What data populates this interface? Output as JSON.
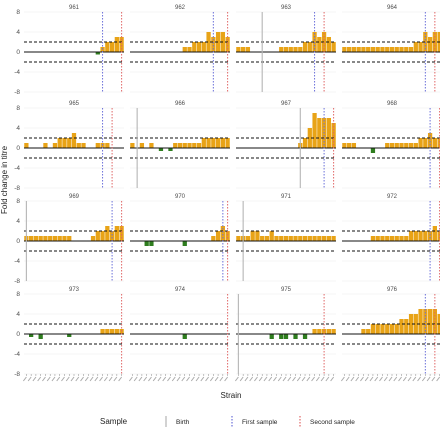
{
  "chart_data": {
    "type": "bar",
    "ylabel": "Fold change in titre",
    "xlabel": "Strain",
    "ylim": [
      -8,
      8
    ],
    "yticks": [
      -8,
      -4,
      0,
      4,
      8
    ],
    "threshold_lines": [
      2,
      -2
    ],
    "n_strains": 21,
    "colors": {
      "positive": "#E8A317",
      "negative": "#2E7D1E",
      "Birth": "#B5B5B5",
      "First sample": "#6A6FD9",
      "Second sample": "#E06666"
    },
    "legend": {
      "title": "Sample",
      "entries": [
        "Birth",
        "First sample",
        "Second sample"
      ]
    },
    "panels": [
      {
        "label": "961",
        "values": [
          0,
          0,
          0,
          0,
          0,
          0,
          0,
          0,
          0,
          0,
          0,
          0,
          0,
          0,
          0,
          -0.5,
          1.0,
          2.0,
          2.0,
          3.0,
          3.0
        ],
        "birth": null,
        "first": 16.5,
        "second": 20.5
      },
      {
        "label": "962",
        "values": [
          0,
          0,
          0,
          0,
          0,
          0,
          0,
          0,
          0,
          0,
          0,
          1,
          1,
          2,
          2,
          2,
          4,
          3,
          4,
          4,
          3
        ],
        "birth": null,
        "first": 17.5,
        "second": 20.5
      },
      {
        "label": "963",
        "values": [
          1,
          1,
          1,
          0,
          0,
          0,
          0,
          0,
          0,
          1,
          1,
          1,
          1,
          1,
          2,
          2,
          4,
          3,
          4,
          3,
          2
        ],
        "birth": 5.5,
        "first": 16.5,
        "second": 18.5
      },
      {
        "label": "964",
        "values": [
          1,
          1,
          1,
          1,
          1,
          1,
          1,
          1,
          1,
          1,
          1,
          1,
          1,
          1,
          1,
          2,
          2,
          4,
          3,
          4,
          4
        ],
        "birth": null,
        "first": 17.5,
        "second": 19.5
      },
      {
        "label": "965",
        "values": [
          1,
          0,
          0,
          0,
          1,
          0,
          1,
          2,
          2,
          2,
          3,
          1,
          1,
          0,
          0,
          1,
          1,
          1,
          0,
          0,
          0
        ],
        "birth": null,
        "first": 16.5,
        "second": 18.5
      },
      {
        "label": "966",
        "values": [
          1,
          0,
          1,
          0,
          1,
          0,
          -0.6,
          0,
          -0.6,
          1,
          1,
          1,
          1,
          1,
          1,
          2,
          2,
          2,
          2,
          2,
          2
        ],
        "birth": 1.5,
        "first": null,
        "second": null
      },
      {
        "label": "967",
        "values": [
          0,
          0,
          0,
          0,
          0,
          0,
          0,
          0,
          0,
          0,
          0,
          0,
          0,
          1,
          2,
          4,
          7,
          6,
          6,
          6,
          5
        ],
        "birth": 13.5,
        "first": 18.5,
        "second": 20.5
      },
      {
        "label": "968",
        "values": [
          1,
          1,
          1,
          0,
          0,
          0,
          -1,
          0,
          0,
          1,
          1,
          1,
          1,
          1,
          1,
          1,
          2,
          2,
          3,
          2,
          2
        ],
        "birth": null,
        "first": 18.5,
        "second": 20.5
      },
      {
        "label": "969",
        "values": [
          1,
          1,
          1,
          1,
          1,
          1,
          1,
          1,
          1,
          1,
          0,
          0,
          0,
          0,
          1,
          2,
          2,
          3,
          2,
          3,
          3
        ],
        "birth": 0.5,
        "first": 18.5,
        "second": 20.5
      },
      {
        "label": "970",
        "values": [
          0,
          0,
          0,
          -1,
          -1,
          0,
          0,
          0,
          0,
          0,
          0,
          -1,
          0,
          0,
          0,
          0,
          0,
          1,
          2,
          3,
          2
        ],
        "birth": null,
        "first": 19.5,
        "second": 20.5
      },
      {
        "label": "971",
        "values": [
          1,
          1,
          1,
          2,
          2,
          1,
          1,
          2,
          1,
          1,
          1,
          1,
          1,
          1,
          1,
          1,
          1,
          1,
          1,
          1,
          1
        ],
        "birth": 1.5,
        "first": null,
        "second": null
      },
      {
        "label": "972",
        "values": [
          0,
          0,
          0,
          0,
          0,
          0,
          1,
          1,
          1,
          1,
          1,
          1,
          1,
          1,
          2,
          2,
          2,
          2,
          2,
          3,
          2
        ],
        "birth": null,
        "first": 18.5,
        "second": 20.5
      },
      {
        "label": "973",
        "values": [
          0,
          -0.6,
          0,
          -1,
          0,
          0,
          0,
          0,
          0,
          -0.6,
          0,
          0,
          0,
          0,
          0,
          0,
          1,
          1,
          1,
          1,
          1
        ],
        "birth": null,
        "first": null,
        "second": 20.5
      },
      {
        "label": "974",
        "values": [
          0,
          0,
          0,
          0,
          0,
          0,
          0,
          0,
          0,
          0,
          0,
          -1,
          0,
          0,
          0,
          0,
          0,
          0,
          0,
          0,
          0
        ],
        "birth": null,
        "first": null,
        "second": 20.5
      },
      {
        "label": "975",
        "values": [
          0,
          0,
          0,
          0,
          0,
          0,
          0,
          -1,
          0,
          -1,
          -1,
          0,
          -1,
          0,
          -1,
          0,
          1,
          1,
          1,
          1,
          1
        ],
        "birth": 0.5,
        "first": null,
        "second": 18.5
      },
      {
        "label": "976",
        "values": [
          0,
          0,
          0,
          0,
          1,
          1,
          2,
          2,
          2,
          2,
          2,
          2,
          3,
          3,
          4,
          4,
          5,
          5,
          5,
          5,
          4
        ],
        "birth": null,
        "first": 17.5,
        "second": 19.5
      }
    ]
  }
}
